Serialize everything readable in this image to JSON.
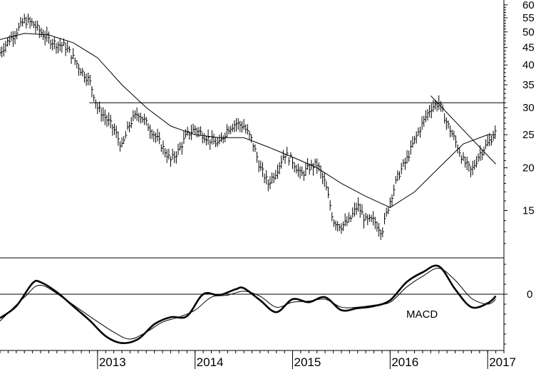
{
  "colors": {
    "ink": "#000000",
    "background": "#ffffff"
  },
  "chart_data": [
    {
      "type": "line",
      "subtype": "ohlc-price-chart",
      "scale": "log",
      "ylim": [
        11,
        62
      ],
      "y_ticks": [
        15,
        20,
        25,
        30,
        35,
        40,
        45,
        50,
        55,
        60
      ],
      "y_tick_labels": [
        "15",
        "20",
        "25",
        "30",
        "35",
        "40",
        "45",
        "50",
        "55",
        "60"
      ],
      "x_start": "2012-01",
      "x_end": "2017-03",
      "x_tick_labels": [
        "2013",
        "2014",
        "2015",
        "2016",
        "2017"
      ],
      "x_tick_dates": [
        "2013-01-01",
        "2014-01-01",
        "2015-01-01",
        "2016-01-01",
        "2017-01-01"
      ],
      "price_series": [
        [
          "2012-01-01",
          43.5
        ],
        [
          "2012-02-01",
          47
        ],
        [
          "2012-03-01",
          50
        ],
        [
          "2012-04-01",
          54
        ],
        [
          "2012-05-01",
          53
        ],
        [
          "2012-06-01",
          50
        ],
        [
          "2012-07-01",
          47.5
        ],
        [
          "2012-08-01",
          46
        ],
        [
          "2012-09-01",
          45.5
        ],
        [
          "2012-10-01",
          42
        ],
        [
          "2012-11-01",
          38.5
        ],
        [
          "2012-12-01",
          36
        ],
        [
          "2013-01-01",
          30
        ],
        [
          "2013-02-01",
          28
        ],
        [
          "2013-03-01",
          26
        ],
        [
          "2013-04-01",
          23
        ],
        [
          "2013-05-01",
          27
        ],
        [
          "2013-06-01",
          29
        ],
        [
          "2013-07-01",
          27
        ],
        [
          "2013-08-01",
          25
        ],
        [
          "2013-09-01",
          23
        ],
        [
          "2013-10-01",
          21
        ],
        [
          "2013-11-01",
          22.5
        ],
        [
          "2013-12-01",
          25
        ],
        [
          "2014-01-01",
          26
        ],
        [
          "2014-02-01",
          25
        ],
        [
          "2014-03-01",
          24
        ],
        [
          "2014-04-01",
          23.5
        ],
        [
          "2014-05-01",
          26
        ],
        [
          "2014-06-01",
          27
        ],
        [
          "2014-07-01",
          26.5
        ],
        [
          "2014-08-01",
          24
        ],
        [
          "2014-09-01",
          20
        ],
        [
          "2014-10-01",
          18
        ],
        [
          "2014-11-01",
          19.5
        ],
        [
          "2014-12-01",
          22
        ],
        [
          "2015-01-01",
          21
        ],
        [
          "2015-02-01",
          19
        ],
        [
          "2015-03-01",
          20
        ],
        [
          "2015-04-01",
          20.5
        ],
        [
          "2015-05-01",
          18
        ],
        [
          "2015-06-01",
          14
        ],
        [
          "2015-07-01",
          13.5
        ],
        [
          "2015-08-01",
          14
        ],
        [
          "2015-09-01",
          15.5
        ],
        [
          "2015-10-01",
          14
        ],
        [
          "2015-11-01",
          14
        ],
        [
          "2015-12-01",
          13
        ],
        [
          "2016-01-01",
          16
        ],
        [
          "2016-02-01",
          19
        ],
        [
          "2016-03-01",
          21
        ],
        [
          "2016-04-01",
          24
        ],
        [
          "2016-05-01",
          27
        ],
        [
          "2016-06-01",
          30
        ],
        [
          "2016-07-01",
          31
        ],
        [
          "2016-08-01",
          27
        ],
        [
          "2016-09-01",
          24
        ],
        [
          "2016-10-01",
          21
        ],
        [
          "2016-11-01",
          19.5
        ],
        [
          "2016-12-01",
          22
        ],
        [
          "2017-01-01",
          23.5
        ],
        [
          "2017-02-01",
          25.5
        ]
      ],
      "moving_average": [
        [
          "2012-01-01",
          47.5
        ],
        [
          "2012-04-01",
          49.5
        ],
        [
          "2012-07-01",
          49
        ],
        [
          "2012-10-01",
          46.5
        ],
        [
          "2013-01-01",
          42
        ],
        [
          "2013-04-01",
          35
        ],
        [
          "2013-07-01",
          30
        ],
        [
          "2013-10-01",
          26.5
        ],
        [
          "2014-01-01",
          25
        ],
        [
          "2014-04-01",
          24.5
        ],
        [
          "2014-07-01",
          24.5
        ],
        [
          "2014-10-01",
          23
        ],
        [
          "2015-01-01",
          21.5
        ],
        [
          "2015-04-01",
          20
        ],
        [
          "2015-07-01",
          18
        ],
        [
          "2015-10-01",
          16.5
        ],
        [
          "2016-01-01",
          15.3
        ],
        [
          "2016-04-01",
          17
        ],
        [
          "2016-07-01",
          20
        ],
        [
          "2016-10-01",
          23.5
        ],
        [
          "2017-01-01",
          25
        ],
        [
          "2017-02-01",
          25
        ]
      ],
      "horizontal_line": {
        "value": 31,
        "from": "2012-12-01",
        "to": "2017-03"
      },
      "trendline": [
        [
          "2016-06-01",
          32.5
        ],
        [
          "2017-02-01",
          20.5
        ]
      ],
      "grid": false
    },
    {
      "type": "line",
      "subtype": "macd-indicator",
      "annotation": "MACD",
      "ylim": [
        -5.5,
        3.5
      ],
      "y_ticks": [
        0
      ],
      "y_tick_labels": [
        "0"
      ],
      "zero_line": true,
      "series": [
        {
          "values": [
            [
              "2012-01-01",
              -2.4
            ],
            [
              "2012-03-01",
              -1.2
            ],
            [
              "2012-05-01",
              1.1
            ],
            [
              "2012-06-01",
              1.2
            ],
            [
              "2012-08-01",
              0.2
            ],
            [
              "2012-10-01",
              -1.2
            ],
            [
              "2012-12-01",
              -2.6
            ],
            [
              "2013-02-01",
              -4.2
            ],
            [
              "2013-04-01",
              -4.9
            ],
            [
              "2013-06-01",
              -4.5
            ],
            [
              "2013-08-01",
              -3
            ],
            [
              "2013-10-01",
              -2.3
            ],
            [
              "2013-12-01",
              -2.2
            ],
            [
              "2014-02-01",
              0
            ],
            [
              "2014-04-01",
              -0.1
            ],
            [
              "2014-06-01",
              0.5
            ],
            [
              "2014-07-01",
              0.6
            ],
            [
              "2014-09-01",
              -0.6
            ],
            [
              "2014-11-01",
              -1.8
            ],
            [
              "2015-01-01",
              -0.5
            ],
            [
              "2015-03-01",
              -0.8
            ],
            [
              "2015-05-01",
              -0.3
            ],
            [
              "2015-07-01",
              -1.6
            ],
            [
              "2015-09-01",
              -1.4
            ],
            [
              "2015-11-01",
              -1.2
            ],
            [
              "2016-01-01",
              -0.6
            ],
            [
              "2016-03-01",
              1.2
            ],
            [
              "2016-05-01",
              2.2
            ],
            [
              "2016-07-01",
              2.8
            ],
            [
              "2016-09-01",
              0.5
            ],
            [
              "2016-11-01",
              -1.3
            ],
            [
              "2017-01-01",
              -0.9
            ],
            [
              "2017-02-01",
              -0.2
            ]
          ]
        },
        {
          "values": [
            [
              "2012-01-01",
              -2.7
            ],
            [
              "2012-04-01",
              -0.3
            ],
            [
              "2012-06-01",
              0.9
            ],
            [
              "2012-09-01",
              -0.5
            ],
            [
              "2012-12-01",
              -2.2
            ],
            [
              "2013-03-01",
              -3.8
            ],
            [
              "2013-05-01",
              -4.5
            ],
            [
              "2013-07-01",
              -3.8
            ],
            [
              "2013-09-01",
              -2.8
            ],
            [
              "2013-11-01",
              -2.3
            ],
            [
              "2014-01-01",
              -1.6
            ],
            [
              "2014-03-01",
              -0.3
            ],
            [
              "2014-05-01",
              -0.1
            ],
            [
              "2014-07-01",
              0.3
            ],
            [
              "2014-09-01",
              -0.2
            ],
            [
              "2014-11-01",
              -1.3
            ],
            [
              "2015-01-01",
              -0.8
            ],
            [
              "2015-03-01",
              -0.7
            ],
            [
              "2015-05-01",
              -0.5
            ],
            [
              "2015-07-01",
              -1.3
            ],
            [
              "2015-09-01",
              -1.3
            ],
            [
              "2015-11-01",
              -1.1
            ],
            [
              "2016-01-01",
              -0.8
            ],
            [
              "2016-03-01",
              0.7
            ],
            [
              "2016-05-01",
              1.8
            ],
            [
              "2016-07-01",
              2.6
            ],
            [
              "2016-09-01",
              1.4
            ],
            [
              "2016-11-01",
              -0.4
            ],
            [
              "2017-01-01",
              -1.0
            ],
            [
              "2017-02-01",
              -0.5
            ]
          ]
        }
      ]
    }
  ]
}
